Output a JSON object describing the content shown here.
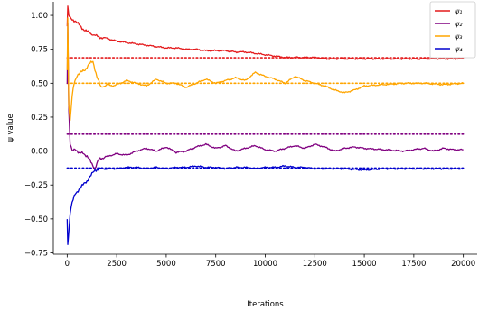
{
  "chart_data": {
    "type": "line",
    "title": "",
    "xlabel": "Iterations",
    "ylabel": "ψ value",
    "xlim": [
      -700,
      20700
    ],
    "ylim": [
      -0.76,
      1.1
    ],
    "xticks": [
      0,
      2500,
      5000,
      7500,
      10000,
      12500,
      15000,
      17500,
      20000
    ],
    "xtick_labels": [
      "0",
      "2500",
      "5000",
      "7500",
      "10000",
      "12500",
      "15000",
      "17500",
      "20000"
    ],
    "yticks": [
      -0.75,
      -0.5,
      -0.25,
      0.0,
      0.25,
      0.5,
      0.75,
      1.0
    ],
    "ytick_labels": [
      "−0.75",
      "−0.50",
      "−0.25",
      "0.00",
      "0.25",
      "0.50",
      "0.75",
      "1.00"
    ],
    "legend": {
      "location": "upper right"
    },
    "grid": false,
    "series": [
      {
        "name": "ψ₁",
        "color": "#e41a1c",
        "reference": 0.6875,
        "x": [
          0,
          30,
          80,
          150,
          250,
          400,
          600,
          800,
          1000,
          1300,
          1600,
          2000,
          2500,
          3000,
          3500,
          4000,
          4500,
          5000,
          5500,
          6000,
          6500,
          7000,
          7500,
          8000,
          8500,
          9000,
          9500,
          10000,
          10500,
          11000,
          11500,
          12000,
          12500,
          13000,
          14000,
          15000,
          16000,
          17000,
          18000,
          19000,
          20000
        ],
        "values": [
          0.92,
          1.06,
          1.0,
          0.98,
          0.97,
          0.96,
          0.93,
          0.9,
          0.88,
          0.86,
          0.84,
          0.83,
          0.81,
          0.8,
          0.79,
          0.78,
          0.77,
          0.76,
          0.76,
          0.75,
          0.75,
          0.74,
          0.74,
          0.74,
          0.73,
          0.73,
          0.72,
          0.71,
          0.7,
          0.69,
          0.69,
          0.69,
          0.69,
          0.68,
          0.68,
          0.68,
          0.68,
          0.68,
          0.68,
          0.68,
          0.68
        ]
      },
      {
        "name": "ψ₂",
        "color": "#800080",
        "reference": 0.125,
        "x": [
          0,
          30,
          80,
          150,
          250,
          400,
          600,
          800,
          1000,
          1200,
          1400,
          1600,
          2000,
          2500,
          3000,
          3500,
          4000,
          4500,
          5000,
          5500,
          6000,
          6500,
          7000,
          7500,
          8000,
          8500,
          9000,
          9500,
          10000,
          10500,
          11000,
          11500,
          12000,
          12500,
          13000,
          13500,
          14000,
          14500,
          15000,
          16000,
          17000,
          18000,
          18500,
          19000,
          19500,
          20000
        ],
        "values": [
          0.5,
          0.95,
          0.3,
          0.05,
          0.0,
          0.02,
          -0.02,
          -0.01,
          -0.04,
          -0.08,
          -0.13,
          -0.06,
          -0.04,
          -0.02,
          -0.03,
          0.0,
          0.02,
          0.0,
          0.03,
          -0.01,
          0.0,
          0.03,
          0.05,
          0.02,
          0.04,
          0.0,
          0.02,
          0.04,
          0.01,
          0.0,
          0.02,
          0.04,
          0.02,
          0.05,
          0.03,
          0.0,
          0.02,
          0.03,
          0.02,
          0.01,
          0.0,
          0.02,
          0.0,
          0.02,
          0.01,
          0.01
        ]
      },
      {
        "name": "ψ₃",
        "color": "#ffa500",
        "reference": 0.5,
        "x": [
          0,
          30,
          80,
          150,
          250,
          350,
          500,
          700,
          900,
          1100,
          1300,
          1500,
          1700,
          2000,
          2300,
          2700,
          3000,
          3500,
          4000,
          4500,
          5000,
          5500,
          6000,
          6500,
          7000,
          7500,
          8000,
          8500,
          9000,
          9500,
          10000,
          10500,
          11000,
          11500,
          12000,
          12500,
          13000,
          13500,
          14000,
          14500,
          15000,
          16000,
          17000,
          18000,
          19000,
          20000
        ],
        "values": [
          0.6,
          0.98,
          0.35,
          0.22,
          0.4,
          0.5,
          0.56,
          0.58,
          0.6,
          0.64,
          0.66,
          0.55,
          0.47,
          0.49,
          0.48,
          0.5,
          0.52,
          0.5,
          0.48,
          0.53,
          0.5,
          0.5,
          0.47,
          0.5,
          0.53,
          0.5,
          0.52,
          0.54,
          0.52,
          0.58,
          0.55,
          0.53,
          0.5,
          0.55,
          0.52,
          0.5,
          0.48,
          0.45,
          0.43,
          0.45,
          0.48,
          0.49,
          0.5,
          0.5,
          0.49,
          0.5
        ]
      },
      {
        "name": "ψ₄",
        "color": "#0000cd",
        "reference": -0.125,
        "x": [
          0,
          30,
          80,
          150,
          250,
          400,
          600,
          800,
          1000,
          1200,
          1400,
          1700,
          2000,
          2500,
          3000,
          3500,
          4000,
          4500,
          5000,
          5500,
          6000,
          6500,
          7000,
          7500,
          8000,
          8500,
          9000,
          9500,
          10000,
          10500,
          11000,
          11500,
          12000,
          12500,
          13000,
          14000,
          15000,
          16000,
          17000,
          18000,
          19000,
          20000
        ],
        "values": [
          -0.5,
          -0.68,
          -0.6,
          -0.45,
          -0.38,
          -0.32,
          -0.28,
          -0.25,
          -0.22,
          -0.18,
          -0.14,
          -0.13,
          -0.13,
          -0.13,
          -0.12,
          -0.12,
          -0.13,
          -0.12,
          -0.13,
          -0.12,
          -0.12,
          -0.11,
          -0.12,
          -0.12,
          -0.13,
          -0.12,
          -0.12,
          -0.13,
          -0.12,
          -0.12,
          -0.11,
          -0.12,
          -0.12,
          -0.13,
          -0.13,
          -0.13,
          -0.14,
          -0.13,
          -0.13,
          -0.13,
          -0.13,
          -0.13
        ]
      }
    ]
  }
}
